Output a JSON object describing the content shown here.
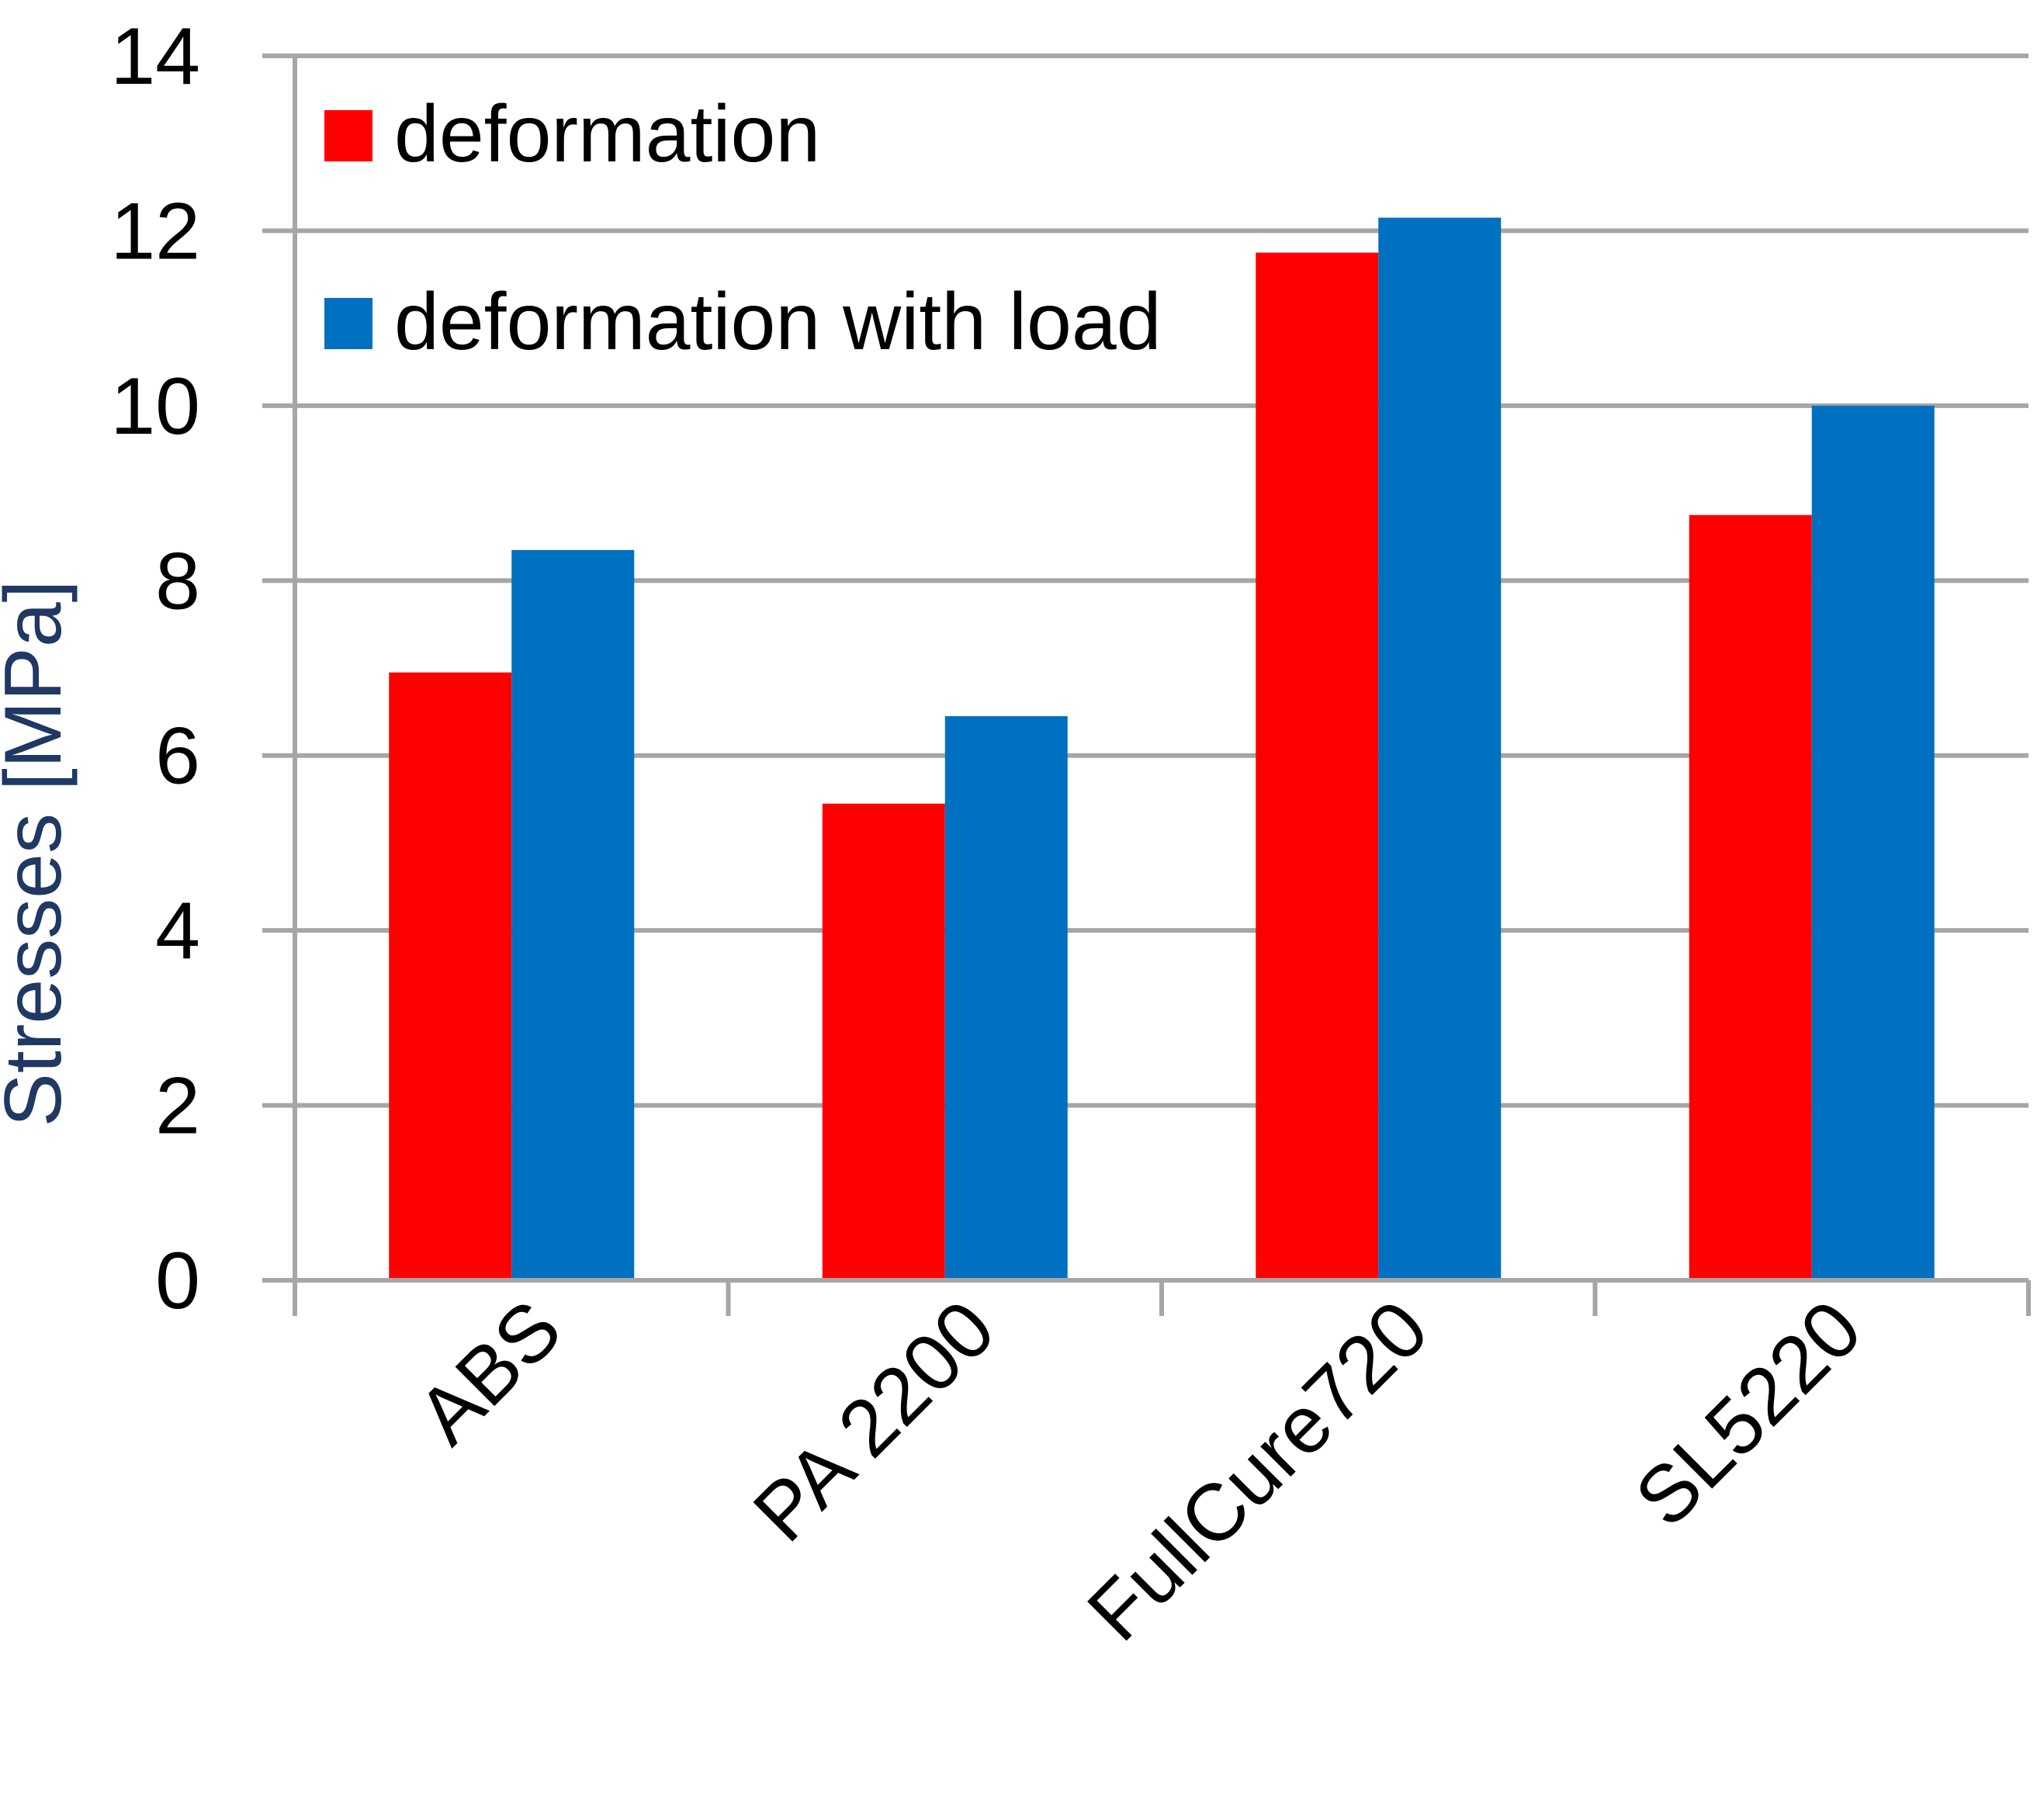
{
  "chart_data": {
    "type": "bar",
    "categories": [
      "ABS",
      "PA 2200",
      "FullCure720",
      "SL5220"
    ],
    "series": [
      {
        "name": "deformation",
        "values": [
          6.95,
          5.45,
          11.75,
          8.75
        ]
      },
      {
        "name": "deformation with load",
        "values": [
          8.35,
          6.45,
          12.15,
          10.0
        ]
      }
    ],
    "ylabel": "Stresses  [MPa]",
    "ylim": [
      0,
      14
    ],
    "yticks": [
      0,
      2,
      4,
      6,
      8,
      10,
      12,
      14
    ],
    "grid": true,
    "legend_position": "top-left",
    "colors": {
      "deformation": "#FF0000",
      "deformation with load": "#0070C0",
      "grid": "#A6A6A6",
      "ylabel": "#1F3864",
      "text": "#000000"
    }
  }
}
